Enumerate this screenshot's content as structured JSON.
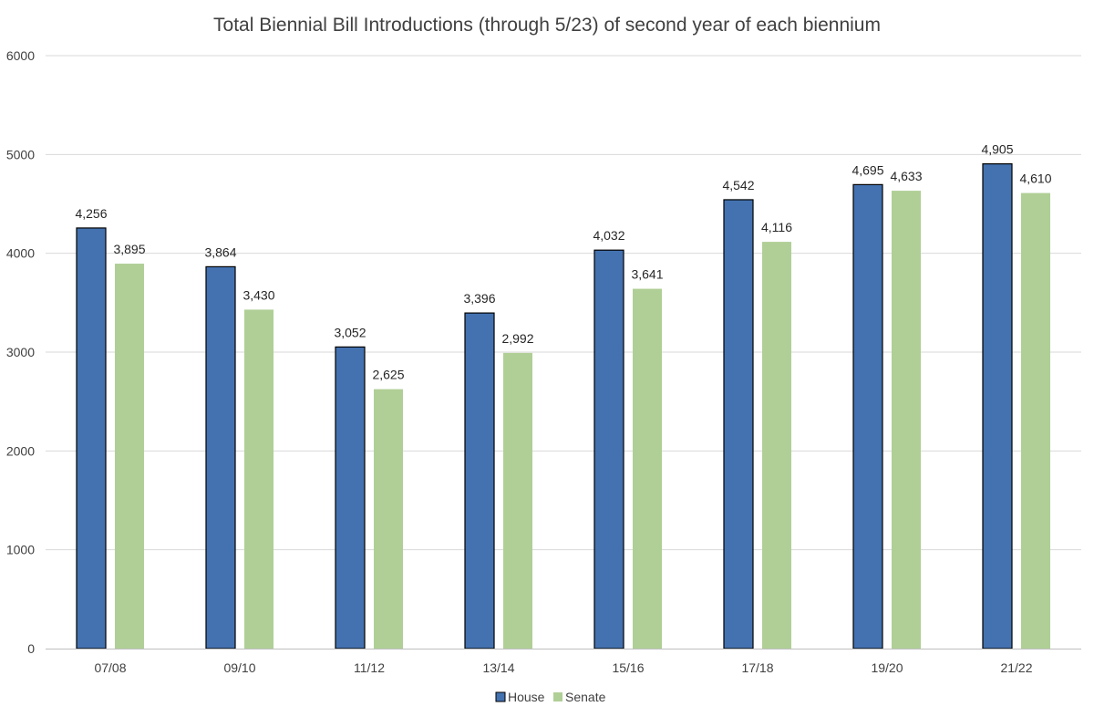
{
  "chart_data": {
    "type": "bar",
    "title": "Total Biennial Bill Introductions (through 5/23) of second year of each biennium",
    "xlabel": "",
    "ylabel": "",
    "ylim": [
      0,
      6000
    ],
    "yticks": [
      0,
      1000,
      2000,
      3000,
      4000,
      5000,
      6000
    ],
    "grid": true,
    "legend_position": "bottom",
    "categories": [
      "07/08",
      "09/10",
      "11/12",
      "13/14",
      "15/16",
      "17/18",
      "19/20",
      "21/22"
    ],
    "series": [
      {
        "name": "House",
        "color": "#4472b0",
        "values": [
          4256,
          3864,
          3052,
          3396,
          4032,
          4542,
          4695,
          4905
        ],
        "labels": [
          "4,256",
          "3,864",
          "3,052",
          "3,396",
          "4,032",
          "4,542",
          "4,695",
          "4,905"
        ]
      },
      {
        "name": "Senate",
        "color": "#b0cf96",
        "values": [
          3895,
          3430,
          2625,
          2992,
          3641,
          4116,
          4633,
          4610
        ],
        "labels": [
          "3,895",
          "3,430",
          "2,625",
          "2,992",
          "3,641",
          "4,116",
          "4,633",
          "4,610"
        ]
      }
    ]
  }
}
